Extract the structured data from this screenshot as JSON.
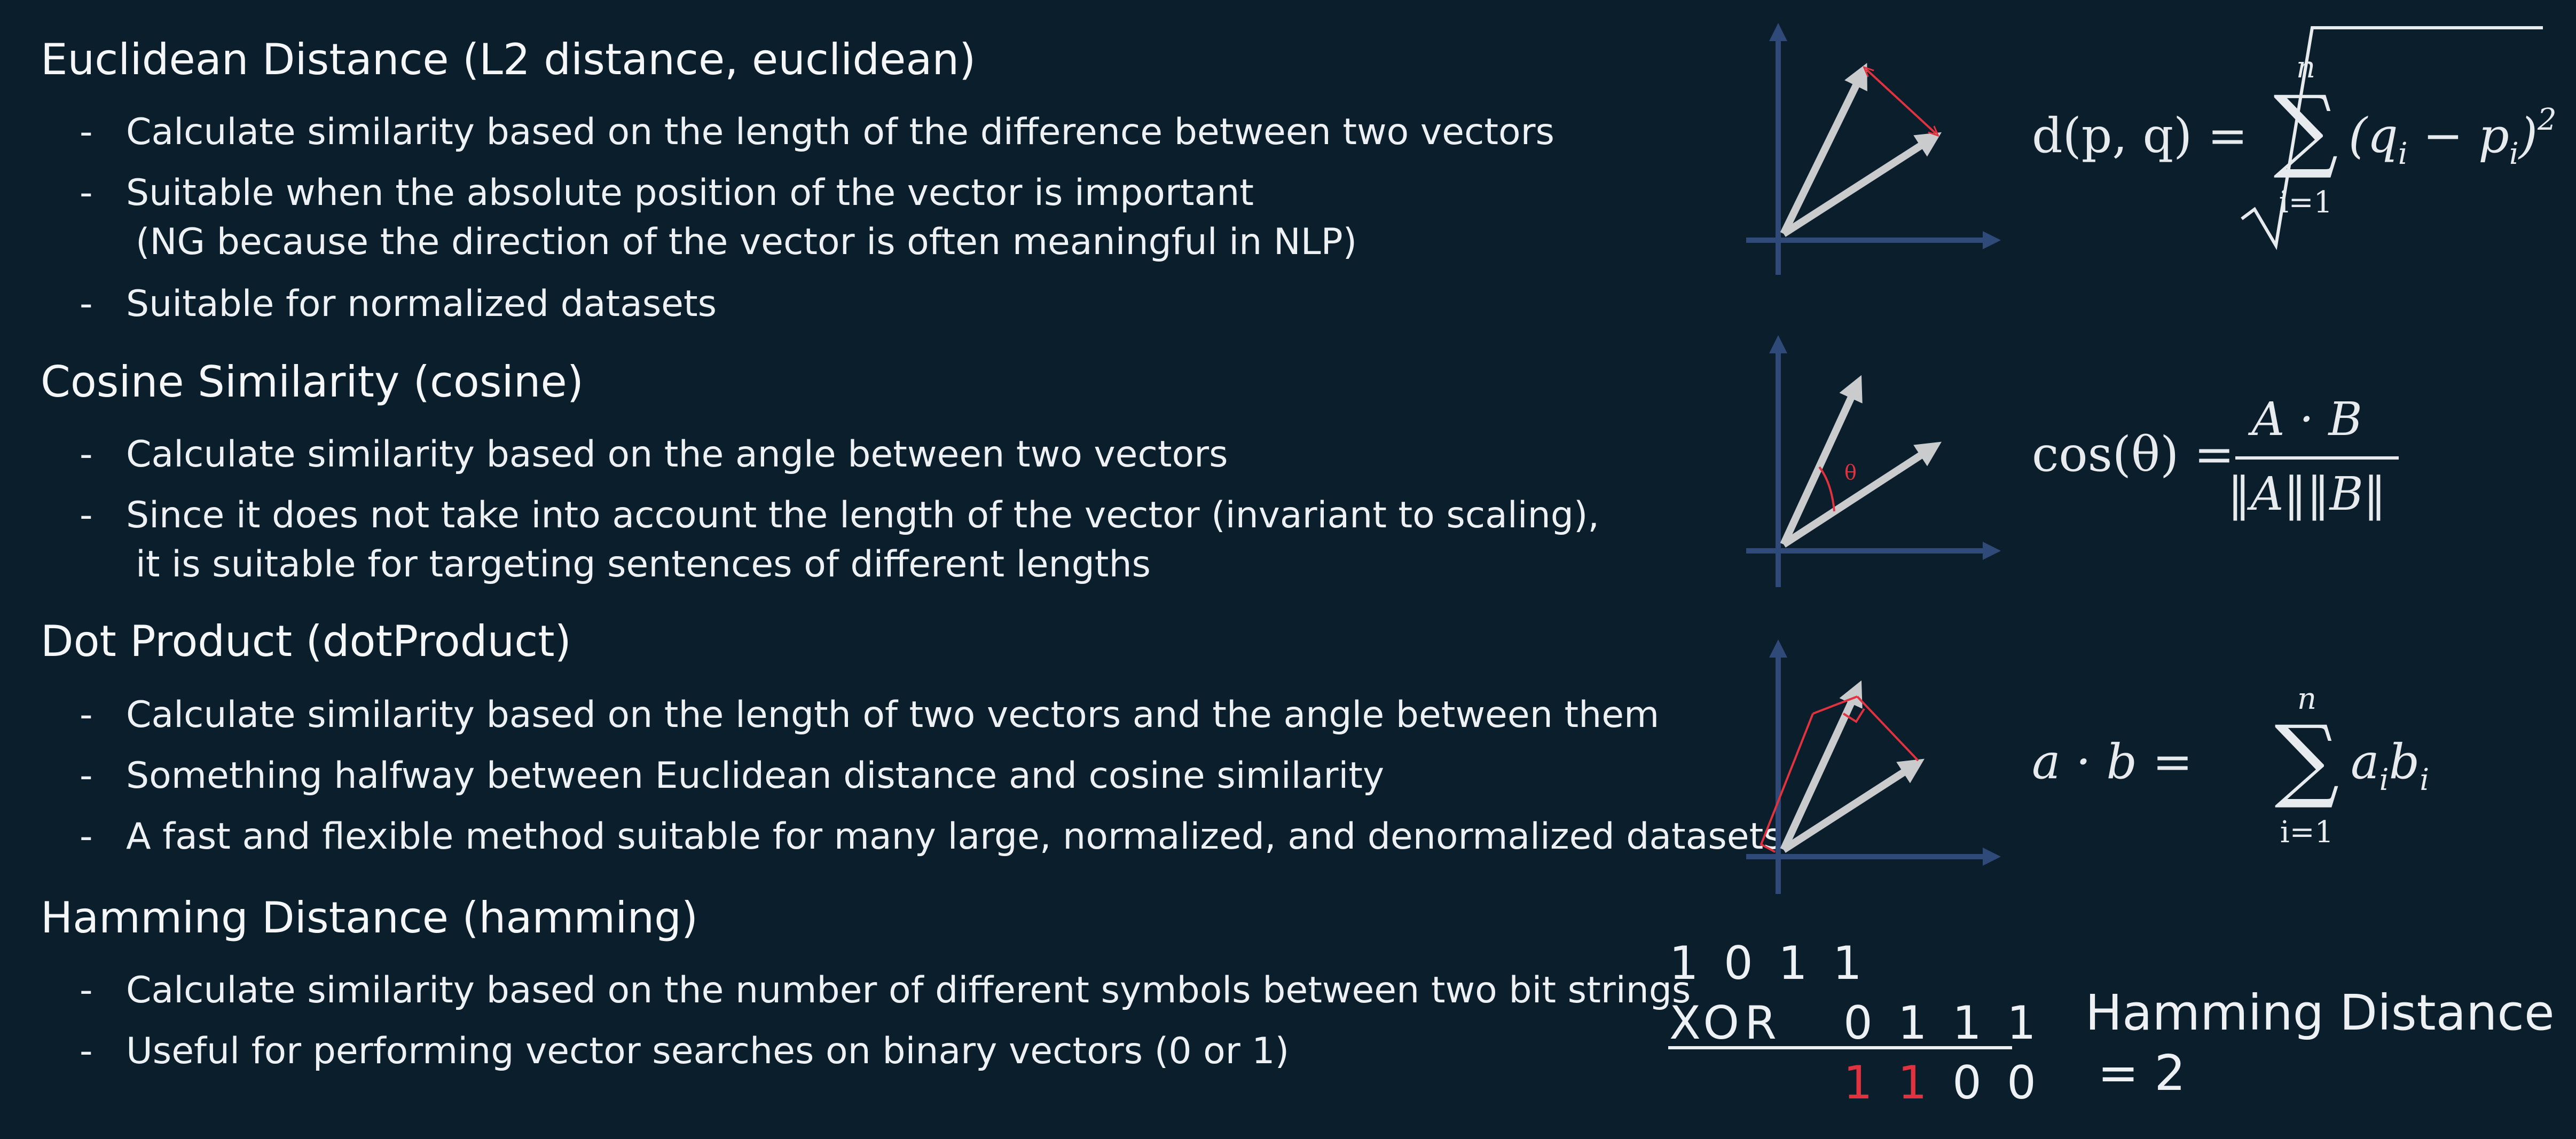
{
  "sections": [
    {
      "title": "Euclidean Distance (L2 distance, euclidean)",
      "bullets": [
        {
          "text": "Calculate similarity based on the length of the difference between two vectors"
        },
        {
          "text": "Suitable when the absolute position of the vector is important",
          "continuation": "(NG because the direction of the vector is often meaningful in NLP)"
        },
        {
          "text": "Suitable for normalized datasets"
        }
      ]
    },
    {
      "title": "Cosine Similarity (cosine)",
      "bullets": [
        {
          "text": "Calculate similarity based on the angle between two vectors"
        },
        {
          "text": "Since it does not take into account the length of the vector (invariant to scaling),",
          "continuation": "it is suitable for targeting sentences of different lengths"
        }
      ]
    },
    {
      "title": "Dot Product (dotProduct)",
      "bullets": [
        {
          "text": "Calculate similarity based on the length of two vectors and the angle between them"
        },
        {
          "text": "Something halfway between Euclidean distance and cosine similarity"
        },
        {
          "text": "A fast and flexible method suitable for many large, normalized, and denormalized datasets"
        }
      ]
    },
    {
      "title": "Hamming Distance (hamming)",
      "bullets": [
        {
          "text": "Calculate similarity based on the number of different symbols between two bit strings"
        },
        {
          "text": "Useful for performing vector searches on binary vectors (0 or 1)"
        }
      ]
    }
  ],
  "bullet_marker": "-",
  "formulas": {
    "euclidean": {
      "lhs": "d(p, q) =",
      "sum_top": "n",
      "sum_bottom": "i=1",
      "body": "(q",
      "sub1": "i",
      "minus": " − p",
      "sub2": "i",
      "close": ")",
      "exp": "2"
    },
    "cosine": {
      "lhs": "cos(θ) =",
      "numerator": "A · B",
      "denominator": "‖A‖‖B‖",
      "angle_symbol": "θ"
    },
    "dot": {
      "lhs": "a · b =",
      "sum_top": "n",
      "sum_bottom": "i=1",
      "body": "a",
      "sub1": "i",
      "body2": "b",
      "sub2": "i"
    }
  },
  "hamming_example": {
    "row1": "1 0 1 1",
    "xor_label": "XOR",
    "row2": "0 1 1 1",
    "result_red": "1 1",
    "result_rest": "0 0",
    "label_line1": "Hamming Distance",
    "label_line2": "= 2"
  },
  "colors": {
    "background": "#0b1e2b",
    "axis": "#2f4a78",
    "vector": "#c9cbcd",
    "accent_red": "#e0323f",
    "text": "#eef1f4"
  }
}
